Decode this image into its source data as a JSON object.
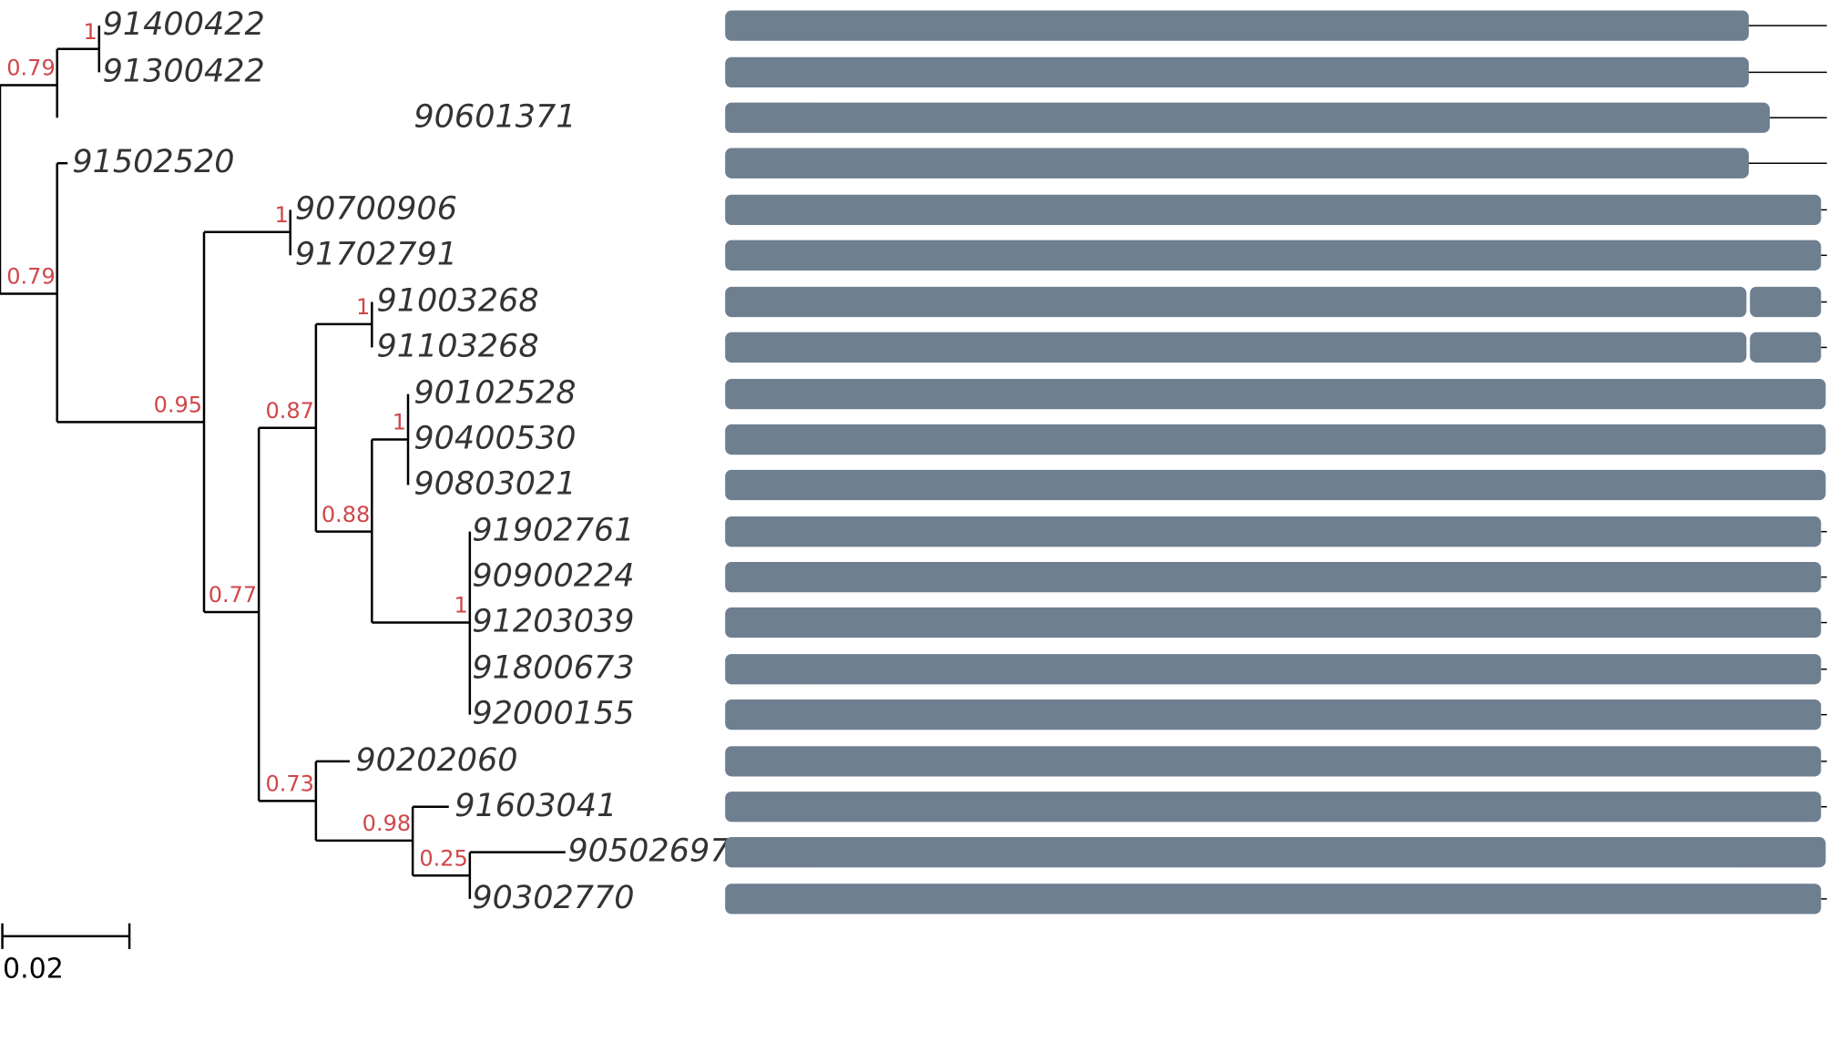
{
  "leaves": [
    "91400422",
    "91300422",
    "90601371",
    "91502520",
    "90700906",
    "91702791",
    "91003268",
    "91103268",
    "90102528",
    "90400530",
    "90803021",
    "91902761",
    "90900224",
    "91203039",
    "91800673",
    "92000155",
    "90202060",
    "91603041",
    "90502697",
    "90302770"
  ],
  "supports": [
    "0.79",
    "1",
    "0.79",
    "0.95",
    "1",
    "0.77",
    "0.87",
    "1",
    "0.88",
    "1",
    "1",
    "0.73",
    "0.98",
    "0.25"
  ],
  "scale_label": "0.02"
}
